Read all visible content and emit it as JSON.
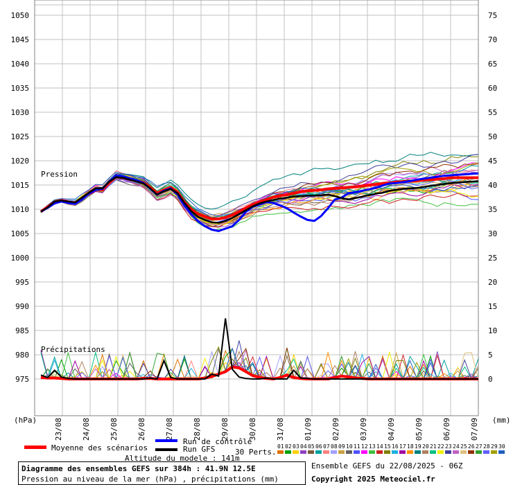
{
  "chart_data": {
    "type": "line",
    "title": "Diagramme des ensembles GEFS sur 384h : 41.9N 12.5E",
    "subtitle": "Pression au niveau de la mer (hPa) , précipitations (mm)",
    "left_axis": {
      "unit_label": "(hPa)",
      "ticks": [
        975,
        980,
        985,
        990,
        995,
        1000,
        1005,
        1010,
        1015,
        1020,
        1025,
        1030,
        1035,
        1040,
        1045,
        1050
      ],
      "range": [
        975,
        1050
      ]
    },
    "right_axis": {
      "unit_label": "(mm)",
      "ticks": [
        0,
        5,
        10,
        15,
        20,
        25,
        30,
        35,
        40,
        45,
        50,
        55,
        60,
        65,
        70,
        75
      ],
      "range": [
        0,
        75
      ]
    },
    "x_labels": [
      "23/08",
      "24/08",
      "25/08",
      "26/08",
      "27/08",
      "28/08",
      "29/08",
      "30/08",
      "31/08",
      "01/09",
      "02/09",
      "03/09",
      "04/09",
      "05/09",
      "06/09",
      "07/09"
    ],
    "panel_labels": {
      "pressure": "Pression",
      "precip": "Précipitations"
    },
    "grid": true,
    "time_step_hours": 6,
    "series": [
      {
        "name": "Moyenne des scénarios",
        "color": "#ff0000",
        "quantity": "pressure_hPa",
        "values": [
          1009.5,
          1010.5,
          1011.5,
          1011.8,
          1011.5,
          1011.3,
          1012.3,
          1013.3,
          1014.2,
          1014,
          1015.5,
          1016.8,
          1016.6,
          1016.2,
          1015.9,
          1015.5,
          1014.5,
          1013.3,
          1014,
          1014.5,
          1013.5,
          1011.5,
          1010,
          1009,
          1008.5,
          1008,
          1008,
          1008.3,
          1008.8,
          1009.5,
          1010.3,
          1011,
          1011.5,
          1012,
          1012.5,
          1012.8,
          1013,
          1013.3,
          1013.6,
          1013.8,
          1013.9,
          1014,
          1014.2,
          1014.3,
          1014.4,
          1014.5,
          1014.6,
          1014.8,
          1015,
          1015.1,
          1015.3,
          1015.4,
          1015.6,
          1015.7,
          1015.8,
          1015.9,
          1016,
          1016.1,
          1016.2,
          1016.3,
          1016.5,
          1016.5,
          1016.5,
          1016.5,
          1016.5
        ]
      },
      {
        "name": "Run de contrôle",
        "color": "#0000ff",
        "quantity": "pressure_hPa",
        "values": [
          1009.5,
          1010.3,
          1011.2,
          1011.6,
          1011.3,
          1011.1,
          1012,
          1013.2,
          1014,
          1014.2,
          1015.8,
          1017,
          1016.8,
          1016.4,
          1016,
          1015.4,
          1014.2,
          1013,
          1013.8,
          1014.3,
          1013,
          1010.8,
          1009,
          1007.5,
          1006.5,
          1005.8,
          1005.5,
          1006,
          1006.5,
          1007.8,
          1009.5,
          1010.5,
          1011,
          1011.5,
          1011.3,
          1010.8,
          1010.2,
          1009.3,
          1008.5,
          1007.8,
          1007.6,
          1008.6,
          1010.2,
          1012,
          1012.4,
          1013.3,
          1013.5,
          1013.8,
          1014.1,
          1014.4,
          1014.9,
          1015.3,
          1015.4,
          1015.6,
          1015.8,
          1016.1,
          1016.3,
          1016.5,
          1016.7,
          1016.9,
          1017,
          1017.1,
          1017.2,
          1017.3,
          1017.4
        ]
      },
      {
        "name": "Run GFS",
        "color": "#000000",
        "quantity": "pressure_hPa",
        "values": [
          1009.5,
          1010.4,
          1011.6,
          1011.8,
          1011.6,
          1011.4,
          1012.4,
          1013.4,
          1014.3,
          1014.3,
          1015.7,
          1016.6,
          1016.5,
          1016.1,
          1015.7,
          1015.3,
          1014.3,
          1013,
          1013.7,
          1014.2,
          1013.3,
          1011.3,
          1009.6,
          1008.4,
          1007.8,
          1007.3,
          1007.2,
          1007.6,
          1008.2,
          1009,
          1009.8,
          1010.6,
          1011.2,
          1011.6,
          1011.9,
          1012.2,
          1012.4,
          1012.6,
          1012.7,
          1012.8,
          1012.8,
          1012.9,
          1013,
          1012.7,
          1012.3,
          1012,
          1012.3,
          1012.6,
          1012.9,
          1013.2,
          1013.4,
          1013.8,
          1014,
          1014.2,
          1014.3,
          1014.4,
          1014.6,
          1014.8,
          1015,
          1015.2,
          1015.4,
          1015.5,
          1015.6,
          1015.7,
          1015.8
        ]
      }
    ],
    "precip_series": [
      {
        "name": "Moyenne des scénarios",
        "color": "#ff0000",
        "quantity": "precip_mm",
        "values": [
          0.3,
          0.2,
          0.2,
          0.1,
          0,
          0,
          0,
          0,
          0,
          0,
          0,
          0,
          0,
          0,
          0,
          0.1,
          0.1,
          0,
          0,
          0,
          0,
          0,
          0,
          0,
          0.2,
          0.5,
          1,
          1.5,
          2.5,
          2.3,
          1.5,
          0.7,
          0.3,
          0.1,
          0,
          0.3,
          0.8,
          0.3,
          0.1,
          0,
          0,
          0,
          0,
          0.3,
          0.6,
          0.4,
          0.2,
          0.1,
          0,
          0,
          0,
          0,
          0,
          0,
          0,
          0,
          0,
          0,
          0,
          0,
          0,
          0,
          0,
          0,
          0
        ]
      },
      {
        "name": "Run GFS",
        "color": "#000000",
        "quantity": "precip_mm",
        "values": [
          0.8,
          0.3,
          1.8,
          0.4,
          0.1,
          0,
          0,
          0,
          0,
          0,
          0,
          0,
          0,
          0,
          0,
          0,
          0.2,
          0,
          3.8,
          0.3,
          0,
          0,
          0,
          0,
          0,
          1,
          0.6,
          12.5,
          2,
          0.4,
          0.1,
          0,
          0,
          0.2,
          0,
          0,
          0,
          1.8,
          0.2,
          0.1,
          0,
          0,
          0,
          0,
          0,
          0,
          0,
          0,
          0,
          0,
          0,
          0,
          0,
          0,
          0,
          0,
          0,
          0,
          0,
          0,
          0,
          0,
          0,
          0,
          0
        ]
      }
    ],
    "legend": {
      "mean": "Moyenne des scénarios",
      "control": "Run de contrôle",
      "gfs": "Run GFS",
      "perts": "30 Perts."
    },
    "perturbation_numbers": [
      "01",
      "02",
      "03",
      "04",
      "05",
      "06",
      "07",
      "08",
      "09",
      "10",
      "11",
      "12",
      "13",
      "14",
      "15",
      "16",
      "17",
      "18",
      "19",
      "20",
      "21",
      "22",
      "23",
      "24",
      "25",
      "26",
      "27",
      "28",
      "29",
      "30"
    ],
    "perturbation_colors": [
      "#e07000",
      "#00a000",
      "#ffd000",
      "#9040c0",
      "#7a5a3a",
      "#00a0a0",
      "#ff8080",
      "#a0a0ff",
      "#c8a040",
      "#606060",
      "#5050ff",
      "#ff00ff",
      "#40c040",
      "#d02020",
      "#808000",
      "#20b0e0",
      "#a000a0",
      "#ff9000",
      "#008080",
      "#b08060",
      "#00c080",
      "#f0f000",
      "#4040a0",
      "#c060c0",
      "#e0c080",
      "#903000",
      "#30a030",
      "#6060ff",
      "#a0a000",
      "#2060c0"
    ]
  },
  "footer": {
    "altitude": "Altitude du modele : 141m",
    "title": "Diagramme des ensembles GEFS sur 384h : 41.9N 12.5E",
    "subtitle": "Pression au niveau de la mer (hPa) , précipitations (mm)",
    "run_info": "Ensemble GEFS du 22/08/2025 - 06Z",
    "copyright": "Copyright 2025 Meteociel.fr"
  }
}
